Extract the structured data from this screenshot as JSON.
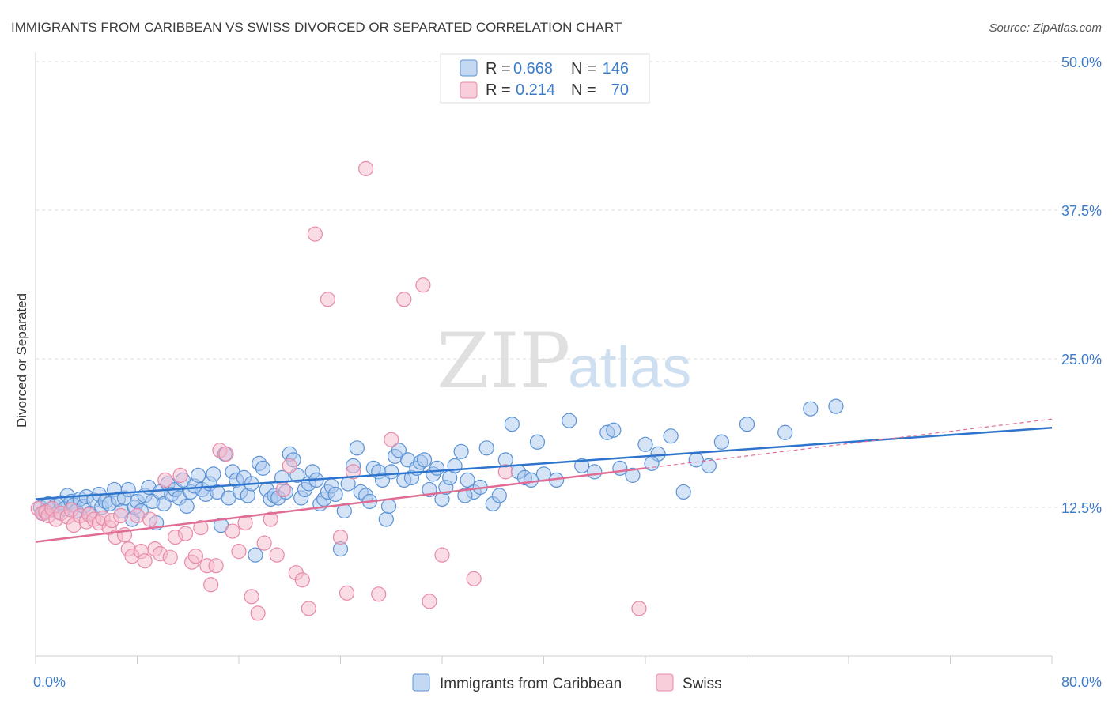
{
  "header": {
    "title": "IMMIGRANTS FROM CARIBBEAN VS SWISS DIVORCED OR SEPARATED CORRELATION CHART",
    "source": "Source: ZipAtlas.com"
  },
  "watermark": {
    "zip": "ZIP",
    "atlas": "atlas"
  },
  "colors": {
    "blue_fill": "#a9c8ee",
    "blue_stroke": "#5b93d6",
    "blue_line": "#2f74cc",
    "pink_fill": "#f5b9cc",
    "pink_stroke": "#e889a8",
    "pink_line": "#e06c94",
    "grid": "#dddddd",
    "tick_text": "#3d7cc9"
  },
  "legend": {
    "rows": [
      {
        "r_label": "R =",
        "r_value": "0.668",
        "n_label": "N =",
        "n_value": "146"
      },
      {
        "r_label": "R =",
        "r_value": "0.214",
        "n_label": "N =",
        "n_value": "70"
      }
    ]
  },
  "bottom_legend": [
    "Immigrants from Caribbean",
    "Swiss"
  ],
  "chart_data": {
    "type": "scatter",
    "title": "IMMIGRANTS FROM CARIBBEAN VS SWISS DIVORCED OR SEPARATED CORRELATION CHART",
    "xlabel": "",
    "ylabel": "Divorced or Separated",
    "xlim": [
      0,
      80
    ],
    "ylim": [
      0,
      50
    ],
    "x_tick_labels": [
      "0.0%",
      "80.0%"
    ],
    "y_ticks": [
      12.5,
      25.0,
      37.5,
      50.0
    ],
    "y_tick_labels": [
      "12.5%",
      "25.0%",
      "37.5%",
      "50.0%"
    ],
    "grid": true,
    "legend_position": "top-center",
    "series": [
      {
        "name": "Immigrants from Caribbean",
        "r": 0.668,
        "n": 146,
        "trend": {
          "x": [
            0,
            80
          ],
          "y": [
            13.2,
            19.2
          ]
        },
        "points": [
          [
            0.4,
            12.5
          ],
          [
            0.6,
            12.0
          ],
          [
            0.8,
            12.2
          ],
          [
            1.0,
            12.8
          ],
          [
            1.2,
            12.3
          ],
          [
            1.5,
            12.6
          ],
          [
            1.8,
            12.1
          ],
          [
            2.0,
            12.9
          ],
          [
            2.3,
            12.4
          ],
          [
            2.5,
            13.5
          ],
          [
            2.8,
            13.0
          ],
          [
            3.0,
            12.7
          ],
          [
            3.2,
            12.2
          ],
          [
            3.5,
            13.2
          ],
          [
            3.8,
            12.6
          ],
          [
            4.0,
            13.4
          ],
          [
            4.3,
            12.0
          ],
          [
            4.6,
            13.1
          ],
          [
            5.0,
            13.6
          ],
          [
            5.2,
            12.5
          ],
          [
            5.5,
            13.0
          ],
          [
            5.8,
            12.8
          ],
          [
            6.2,
            14.0
          ],
          [
            6.5,
            13.2
          ],
          [
            6.8,
            12.2
          ],
          [
            7.0,
            13.3
          ],
          [
            7.3,
            14.0
          ],
          [
            7.6,
            11.5
          ],
          [
            7.8,
            12.5
          ],
          [
            8.0,
            13.0
          ],
          [
            8.3,
            12.2
          ],
          [
            8.6,
            13.5
          ],
          [
            8.9,
            14.2
          ],
          [
            9.2,
            13.0
          ],
          [
            9.5,
            11.2
          ],
          [
            9.8,
            13.8
          ],
          [
            10.1,
            12.8
          ],
          [
            10.4,
            14.5
          ],
          [
            10.7,
            13.6
          ],
          [
            11.0,
            14.0
          ],
          [
            11.3,
            13.3
          ],
          [
            11.6,
            14.8
          ],
          [
            11.9,
            12.6
          ],
          [
            12.2,
            13.8
          ],
          [
            12.5,
            14.3
          ],
          [
            12.8,
            15.2
          ],
          [
            13.1,
            14.0
          ],
          [
            13.4,
            13.6
          ],
          [
            13.7,
            14.5
          ],
          [
            14.0,
            15.3
          ],
          [
            14.3,
            13.8
          ],
          [
            14.6,
            11.0
          ],
          [
            14.9,
            17.0
          ],
          [
            15.2,
            13.3
          ],
          [
            15.5,
            15.5
          ],
          [
            15.8,
            14.8
          ],
          [
            16.1,
            13.8
          ],
          [
            16.4,
            15.0
          ],
          [
            16.7,
            13.5
          ],
          [
            17.0,
            14.5
          ],
          [
            17.3,
            8.5
          ],
          [
            17.6,
            16.2
          ],
          [
            17.9,
            15.8
          ],
          [
            18.2,
            14.0
          ],
          [
            18.5,
            13.2
          ],
          [
            18.8,
            13.5
          ],
          [
            19.1,
            13.3
          ],
          [
            19.4,
            15.0
          ],
          [
            19.7,
            13.8
          ],
          [
            20.0,
            17.0
          ],
          [
            20.3,
            16.5
          ],
          [
            20.6,
            15.2
          ],
          [
            20.9,
            13.3
          ],
          [
            21.2,
            14.0
          ],
          [
            21.5,
            14.5
          ],
          [
            21.8,
            15.5
          ],
          [
            22.1,
            14.8
          ],
          [
            22.4,
            12.8
          ],
          [
            22.7,
            13.2
          ],
          [
            23.0,
            13.8
          ],
          [
            23.3,
            14.3
          ],
          [
            23.6,
            13.6
          ],
          [
            24.0,
            9.0
          ],
          [
            24.3,
            12.2
          ],
          [
            24.6,
            14.5
          ],
          [
            25.0,
            16.0
          ],
          [
            25.3,
            17.5
          ],
          [
            25.6,
            13.8
          ],
          [
            26.0,
            13.5
          ],
          [
            26.3,
            13.0
          ],
          [
            26.6,
            15.8
          ],
          [
            27.0,
            15.5
          ],
          [
            27.3,
            14.8
          ],
          [
            27.6,
            11.5
          ],
          [
            28.0,
            15.5
          ],
          [
            28.3,
            16.8
          ],
          [
            28.6,
            17.3
          ],
          [
            29.0,
            14.8
          ],
          [
            29.3,
            16.5
          ],
          [
            29.6,
            15.0
          ],
          [
            30.0,
            15.8
          ],
          [
            30.3,
            16.3
          ],
          [
            30.6,
            16.5
          ],
          [
            31.0,
            14.0
          ],
          [
            31.3,
            15.3
          ],
          [
            31.6,
            15.8
          ],
          [
            32.0,
            13.2
          ],
          [
            32.3,
            14.2
          ],
          [
            32.6,
            15.0
          ],
          [
            33.0,
            16.0
          ],
          [
            33.5,
            17.2
          ],
          [
            34.0,
            14.8
          ],
          [
            34.5,
            13.8
          ],
          [
            35.0,
            14.2
          ],
          [
            35.5,
            17.5
          ],
          [
            36.0,
            12.8
          ],
          [
            36.5,
            13.5
          ],
          [
            37.0,
            16.5
          ],
          [
            37.5,
            19.5
          ],
          [
            38.0,
            15.5
          ],
          [
            38.5,
            15.0
          ],
          [
            39.0,
            14.8
          ],
          [
            40.0,
            15.3
          ],
          [
            41.0,
            14.8
          ],
          [
            42.0,
            19.8
          ],
          [
            43.0,
            16.0
          ],
          [
            44.0,
            15.5
          ],
          [
            45.0,
            18.8
          ],
          [
            45.5,
            19.0
          ],
          [
            46.0,
            15.8
          ],
          [
            47.0,
            15.2
          ],
          [
            48.0,
            17.8
          ],
          [
            49.0,
            17.0
          ],
          [
            50.0,
            18.5
          ],
          [
            51.0,
            13.8
          ],
          [
            52.0,
            16.5
          ],
          [
            53.0,
            16.0
          ],
          [
            54.0,
            18.0
          ],
          [
            56.0,
            19.5
          ],
          [
            59.0,
            18.8
          ],
          [
            61.0,
            20.8
          ],
          [
            63.0,
            21.0
          ],
          [
            48.5,
            16.2
          ],
          [
            39.5,
            18.0
          ],
          [
            33.8,
            13.5
          ],
          [
            27.8,
            12.6
          ]
        ]
      },
      {
        "name": "Swiss",
        "r": 0.214,
        "n": 70,
        "trend": {
          "x": [
            0,
            48
          ],
          "y": [
            9.6,
            15.8
          ]
        },
        "points": [
          [
            0.2,
            12.4
          ],
          [
            0.5,
            12.0
          ],
          [
            0.8,
            12.1
          ],
          [
            1.0,
            11.8
          ],
          [
            1.3,
            12.4
          ],
          [
            1.6,
            11.5
          ],
          [
            2.0,
            12.0
          ],
          [
            2.5,
            11.7
          ],
          [
            2.8,
            12.3
          ],
          [
            3.0,
            11.0
          ],
          [
            3.5,
            11.8
          ],
          [
            4.0,
            11.3
          ],
          [
            4.2,
            11.9
          ],
          [
            4.6,
            11.5
          ],
          [
            5.0,
            11.2
          ],
          [
            5.3,
            11.6
          ],
          [
            5.8,
            10.8
          ],
          [
            6.0,
            11.4
          ],
          [
            6.3,
            10.0
          ],
          [
            6.7,
            11.8
          ],
          [
            7.0,
            10.2
          ],
          [
            7.3,
            9.0
          ],
          [
            7.6,
            8.4
          ],
          [
            8.0,
            11.8
          ],
          [
            8.3,
            8.8
          ],
          [
            8.6,
            8.0
          ],
          [
            9.0,
            11.5
          ],
          [
            9.4,
            9.0
          ],
          [
            9.8,
            8.6
          ],
          [
            10.2,
            14.8
          ],
          [
            10.6,
            8.3
          ],
          [
            11.0,
            10.0
          ],
          [
            11.4,
            15.2
          ],
          [
            11.8,
            10.3
          ],
          [
            12.3,
            7.9
          ],
          [
            12.6,
            8.4
          ],
          [
            13.0,
            10.8
          ],
          [
            13.5,
            7.6
          ],
          [
            13.8,
            6.0
          ],
          [
            14.2,
            7.6
          ],
          [
            14.5,
            17.3
          ],
          [
            15.0,
            17.0
          ],
          [
            15.5,
            10.5
          ],
          [
            16.0,
            8.8
          ],
          [
            16.5,
            11.2
          ],
          [
            17.0,
            5.0
          ],
          [
            17.5,
            3.6
          ],
          [
            18.0,
            9.5
          ],
          [
            18.5,
            11.5
          ],
          [
            19.0,
            8.5
          ],
          [
            19.5,
            14.0
          ],
          [
            20.0,
            16.0
          ],
          [
            20.5,
            7.0
          ],
          [
            21.0,
            6.4
          ],
          [
            21.5,
            4.0
          ],
          [
            22.0,
            35.5
          ],
          [
            23.0,
            30.0
          ],
          [
            24.0,
            10.0
          ],
          [
            24.5,
            5.3
          ],
          [
            25.0,
            15.5
          ],
          [
            27.0,
            5.2
          ],
          [
            28.0,
            18.2
          ],
          [
            29.0,
            30.0
          ],
          [
            30.5,
            31.2
          ],
          [
            31.0,
            4.6
          ],
          [
            32.0,
            8.5
          ],
          [
            34.5,
            6.5
          ],
          [
            37.0,
            15.5
          ],
          [
            26.0,
            41.0
          ],
          [
            47.5,
            4.0
          ]
        ]
      }
    ]
  }
}
